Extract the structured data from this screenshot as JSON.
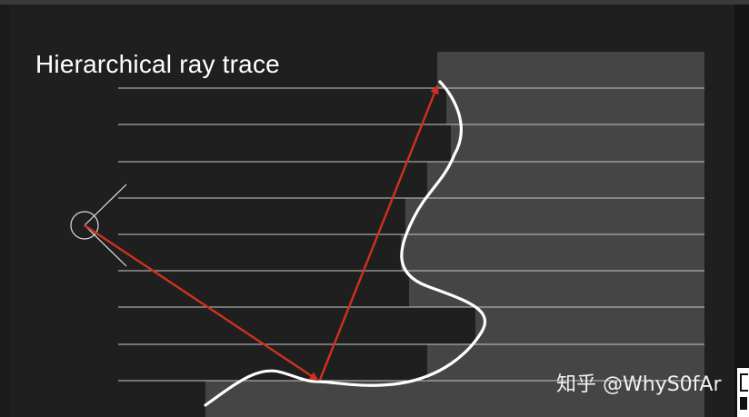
{
  "slide": {
    "title": "Hierarchical ray trace"
  },
  "watermark": {
    "text": "知乎 @WhyS0fAr"
  },
  "colors": {
    "background": "#1f1f1f",
    "surface_fill": "#454545",
    "level_lines": "#c8c8c8",
    "curve": "#ffffff",
    "ray": "#d0311f"
  },
  "icons": {
    "camera": "camera-eye-icon"
  }
}
